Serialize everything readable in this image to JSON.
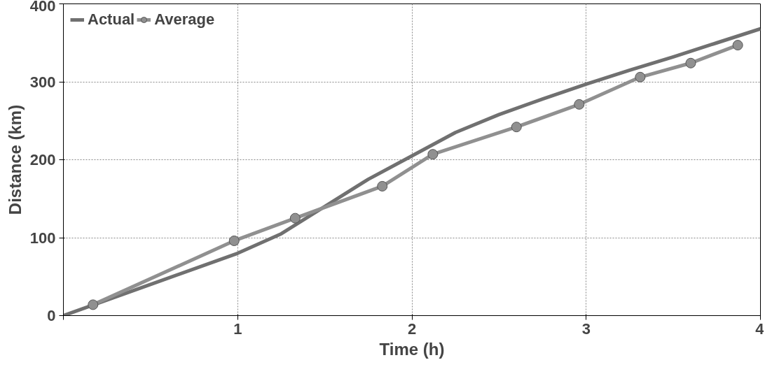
{
  "chart_data": {
    "type": "line",
    "xlabel": "Time (h)",
    "ylabel": "Distance (km)",
    "xlim": [
      0,
      4
    ],
    "ylim": [
      0,
      400
    ],
    "xticks": [
      {
        "value": 0,
        "label": null
      },
      1,
      2,
      3,
      4
    ],
    "yticks": [
      0,
      100,
      200,
      300,
      400
    ],
    "grid": true,
    "legend": "top left",
    "series": [
      {
        "name": "Actual",
        "color": "#707070",
        "marker": "none",
        "x": [
          0,
          0.5,
          1,
          1.25,
          1.5,
          1.75,
          2,
          2.25,
          2.5,
          2.75,
          3,
          3.25,
          3.5,
          3.75,
          4
        ],
        "values": [
          0,
          40,
          80,
          105,
          140,
          175,
          205,
          235,
          258,
          278,
          297,
          315,
          332,
          350,
          368
        ]
      },
      {
        "name": "Average",
        "color": "#909090",
        "marker": "circle",
        "x": [
          0.17,
          0.98,
          1.33,
          1.83,
          2.12,
          2.6,
          2.96,
          3.31,
          3.6,
          3.87
        ],
        "values": [
          14,
          96,
          125,
          166,
          207,
          242,
          271,
          306,
          324,
          347
        ]
      }
    ]
  }
}
